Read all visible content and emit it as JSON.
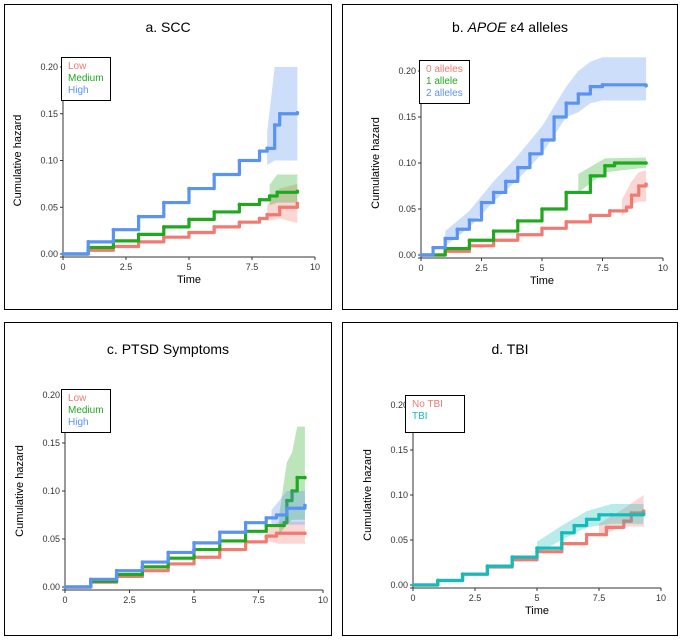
{
  "colors": {
    "red": "#f07b72",
    "green": "#21a81e",
    "blue": "#5b93f2",
    "teal": "#13bcba"
  },
  "chart_data": [
    {
      "id": "a",
      "type": "line",
      "title": "a. SCC",
      "xlabel": "Time",
      "ylabel": "Cumulative hazard",
      "xlim": [
        0,
        10
      ],
      "ylim": [
        0,
        0.2
      ],
      "xticks": [
        "0",
        "2.5",
        "5",
        "7.5",
        "10"
      ],
      "yticks": [
        "0.00",
        "0.05",
        "0.10",
        "0.15",
        "0.20"
      ],
      "legend_position": "top-left",
      "series": [
        {
          "name": "Low",
          "color": "red",
          "points": [
            [
              0,
              0
            ],
            [
              1,
              0.004
            ],
            [
              2,
              0.008
            ],
            [
              3,
              0.013
            ],
            [
              4,
              0.018
            ],
            [
              5,
              0.023
            ],
            [
              6,
              0.029
            ],
            [
              7,
              0.034
            ],
            [
              7.8,
              0.038
            ],
            [
              8.1,
              0.042
            ],
            [
              8.6,
              0.05
            ],
            [
              9.3,
              0.054
            ]
          ],
          "ci": [
            [
              8.1,
              0.035,
              0.052
            ],
            [
              8.6,
              0.038,
              0.07
            ],
            [
              9.3,
              0.033,
              0.075
            ]
          ]
        },
        {
          "name": "Medium",
          "color": "green",
          "points": [
            [
              0,
              0
            ],
            [
              1,
              0.007
            ],
            [
              2,
              0.014
            ],
            [
              3,
              0.021
            ],
            [
              4,
              0.029
            ],
            [
              5,
              0.037
            ],
            [
              6,
              0.045
            ],
            [
              7,
              0.053
            ],
            [
              7.8,
              0.058
            ],
            [
              8.2,
              0.062
            ],
            [
              8.5,
              0.066
            ],
            [
              9.3,
              0.067
            ]
          ],
          "ci": [
            [
              8.2,
              0.052,
              0.074
            ],
            [
              8.5,
              0.055,
              0.085
            ],
            [
              9.3,
              0.055,
              0.085
            ]
          ]
        },
        {
          "name": "High",
          "color": "blue",
          "points": [
            [
              0,
              0
            ],
            [
              1,
              0.013
            ],
            [
              2,
              0.026
            ],
            [
              3,
              0.04
            ],
            [
              4,
              0.055
            ],
            [
              5,
              0.07
            ],
            [
              6,
              0.085
            ],
            [
              7,
              0.1
            ],
            [
              7.8,
              0.11
            ],
            [
              8.1,
              0.113
            ],
            [
              8.4,
              0.138
            ],
            [
              8.6,
              0.15
            ],
            [
              9.3,
              0.151
            ]
          ],
          "ci": [
            [
              8.1,
              0.095,
              0.13
            ],
            [
              8.4,
              0.1,
              0.2
            ],
            [
              9.3,
              0.1,
              0.2
            ]
          ]
        }
      ]
    },
    {
      "id": "b",
      "type": "line",
      "title_pre": "b.",
      "title_italic": "APOE",
      "title_post": "ε4 alleles",
      "xlabel": "Time",
      "ylabel": "Cumulative hazard",
      "xlim": [
        0,
        10
      ],
      "ylim": [
        0,
        0.2
      ],
      "xticks": [
        "0",
        "2.5",
        "5",
        "7.5",
        "10"
      ],
      "yticks": [
        "0.00",
        "0.05",
        "0.10",
        "0.15",
        "0.20"
      ],
      "legend_position": "top-left",
      "series": [
        {
          "name": "0 alleles",
          "color": "red",
          "points": [
            [
              0,
              0
            ],
            [
              1,
              0.004
            ],
            [
              2,
              0.01
            ],
            [
              3,
              0.016
            ],
            [
              4,
              0.022
            ],
            [
              5,
              0.029
            ],
            [
              6,
              0.036
            ],
            [
              7,
              0.043
            ],
            [
              7.8,
              0.048
            ],
            [
              8.5,
              0.052
            ],
            [
              8.7,
              0.065
            ],
            [
              9,
              0.075
            ],
            [
              9.3,
              0.077
            ]
          ],
          "ci": [
            [
              8.3,
              0.042,
              0.06
            ],
            [
              8.7,
              0.055,
              0.08
            ],
            [
              9,
              0.058,
              0.09
            ],
            [
              9.3,
              0.058,
              0.092
            ]
          ]
        },
        {
          "name": "1 allele",
          "color": "green",
          "points": [
            [
              0,
              0
            ],
            [
              1,
              0.007
            ],
            [
              2,
              0.016
            ],
            [
              3,
              0.026
            ],
            [
              4,
              0.037
            ],
            [
              5,
              0.05
            ],
            [
              6,
              0.068
            ],
            [
              7,
              0.086
            ],
            [
              7.6,
              0.097
            ],
            [
              8,
              0.1
            ],
            [
              9.3,
              0.1
            ]
          ],
          "ci": [
            [
              6.5,
              0.068,
              0.088
            ],
            [
              7.6,
              0.09,
              0.105
            ],
            [
              9.3,
              0.095,
              0.106
            ]
          ]
        },
        {
          "name": "2 alleles",
          "color": "blue",
          "points": [
            [
              0,
              0
            ],
            [
              0.5,
              0.008
            ],
            [
              1,
              0.018
            ],
            [
              1.5,
              0.028
            ],
            [
              2,
              0.038
            ],
            [
              2.5,
              0.057
            ],
            [
              3,
              0.068
            ],
            [
              3.5,
              0.08
            ],
            [
              4,
              0.095
            ],
            [
              4.5,
              0.11
            ],
            [
              5,
              0.125
            ],
            [
              5.5,
              0.15
            ],
            [
              6,
              0.165
            ],
            [
              6.5,
              0.175
            ],
            [
              7,
              0.183
            ],
            [
              7.5,
              0.185
            ],
            [
              9.3,
              0.184
            ]
          ],
          "ci": [
            [
              1,
              0.01,
              0.026
            ],
            [
              2,
              0.03,
              0.048
            ],
            [
              3,
              0.058,
              0.08
            ],
            [
              4,
              0.082,
              0.108
            ],
            [
              5,
              0.11,
              0.14
            ],
            [
              6,
              0.15,
              0.183
            ],
            [
              6.5,
              0.155,
              0.2
            ],
            [
              7,
              0.165,
              0.21
            ],
            [
              7.5,
              0.168,
              0.215
            ],
            [
              9.3,
              0.168,
              0.215
            ]
          ]
        }
      ]
    },
    {
      "id": "c",
      "type": "line",
      "title": "c. PTSD Symptoms",
      "xlabel": "",
      "ylabel": "Cumulative hazard",
      "xlim": [
        0,
        10
      ],
      "ylim": [
        0,
        0.2
      ],
      "xticks": [
        "0",
        "2.5",
        "5",
        "7.5",
        "10"
      ],
      "yticks": [
        "0.00",
        "0.05",
        "0.10",
        "0.15",
        "0.20"
      ],
      "legend_position": "top-left",
      "series": [
        {
          "name": "Low",
          "color": "red",
          "points": [
            [
              0,
              0
            ],
            [
              1,
              0.005
            ],
            [
              2,
              0.011
            ],
            [
              3,
              0.017
            ],
            [
              4,
              0.024
            ],
            [
              5,
              0.031
            ],
            [
              6,
              0.039
            ],
            [
              7,
              0.047
            ],
            [
              7.8,
              0.053
            ],
            [
              8.2,
              0.056
            ],
            [
              9.3,
              0.056
            ]
          ],
          "ci": [
            [
              7.8,
              0.048,
              0.06
            ],
            [
              8.3,
              0.045,
              0.068
            ],
            [
              9.3,
              0.045,
              0.068
            ]
          ]
        },
        {
          "name": "Medium",
          "color": "green",
          "points": [
            [
              0,
              0
            ],
            [
              1,
              0.006
            ],
            [
              2,
              0.013
            ],
            [
              3,
              0.021
            ],
            [
              4,
              0.03
            ],
            [
              5,
              0.039
            ],
            [
              6,
              0.048
            ],
            [
              7,
              0.058
            ],
            [
              7.8,
              0.064
            ],
            [
              8.5,
              0.067
            ],
            [
              8.6,
              0.09
            ],
            [
              8.8,
              0.1
            ],
            [
              9.0,
              0.114
            ],
            [
              9.3,
              0.114
            ]
          ],
          "ci": [
            [
              8.3,
              0.055,
              0.075
            ],
            [
              8.6,
              0.065,
              0.13
            ],
            [
              8.8,
              0.07,
              0.14
            ],
            [
              9.0,
              0.07,
              0.167
            ],
            [
              9.3,
              0.07,
              0.167
            ]
          ]
        },
        {
          "name": "High",
          "color": "blue",
          "points": [
            [
              0,
              0
            ],
            [
              1,
              0.008
            ],
            [
              2,
              0.017
            ],
            [
              3,
              0.026
            ],
            [
              4,
              0.036
            ],
            [
              5,
              0.046
            ],
            [
              6,
              0.057
            ],
            [
              7,
              0.067
            ],
            [
              7.8,
              0.072
            ],
            [
              8.2,
              0.075
            ],
            [
              8.6,
              0.082
            ],
            [
              9.3,
              0.085
            ]
          ],
          "ci": [
            [
              8,
              0.065,
              0.08
            ],
            [
              8.6,
              0.065,
              0.1
            ],
            [
              9.3,
              0.065,
              0.1
            ]
          ]
        }
      ]
    },
    {
      "id": "d",
      "type": "line",
      "title": "d. TBI",
      "xlabel": "Time",
      "ylabel": "Cumulative hazard",
      "xlim": [
        0,
        10
      ],
      "ylim": [
        0,
        0.2
      ],
      "xticks": [
        "0",
        "2.5",
        "5",
        "7.5",
        "10"
      ],
      "yticks": [
        "0.00",
        "0.05",
        "0.10",
        "0.15",
        "0.20"
      ],
      "legend_position": "top-left",
      "series": [
        {
          "name": "No TBI",
          "color": "red",
          "points": [
            [
              0,
              0
            ],
            [
              1,
              0.005
            ],
            [
              2,
              0.012
            ],
            [
              3,
              0.02
            ],
            [
              4,
              0.028
            ],
            [
              5,
              0.037
            ],
            [
              6,
              0.046
            ],
            [
              7,
              0.056
            ],
            [
              7.8,
              0.064
            ],
            [
              8.5,
              0.071
            ],
            [
              8.8,
              0.08
            ],
            [
              9.3,
              0.082
            ]
          ],
          "ci": [
            [
              7.5,
              0.055,
              0.068
            ],
            [
              8.5,
              0.065,
              0.085
            ],
            [
              9.3,
              0.065,
              0.1
            ]
          ]
        },
        {
          "name": "TBI",
          "color": "teal",
          "points": [
            [
              0,
              0
            ],
            [
              1,
              0.005
            ],
            [
              2,
              0.012
            ],
            [
              3,
              0.021
            ],
            [
              4,
              0.031
            ],
            [
              5,
              0.041
            ],
            [
              6,
              0.058
            ],
            [
              6.5,
              0.066
            ],
            [
              7,
              0.073
            ],
            [
              7.5,
              0.078
            ],
            [
              8,
              0.078
            ],
            [
              9.3,
              0.079
            ]
          ],
          "ci": [
            [
              5,
              0.035,
              0.048
            ],
            [
              6,
              0.05,
              0.066
            ],
            [
              7,
              0.064,
              0.082
            ],
            [
              8,
              0.068,
              0.09
            ],
            [
              9.3,
              0.068,
              0.09
            ]
          ]
        }
      ]
    }
  ]
}
